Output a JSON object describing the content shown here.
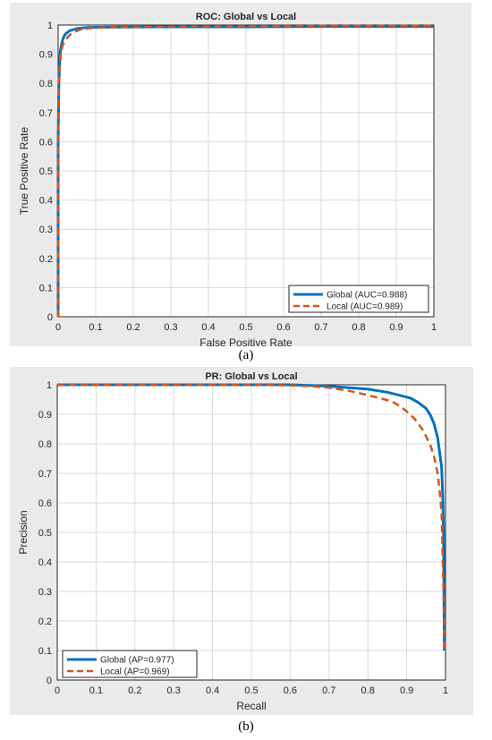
{
  "captions": [
    "(a)",
    "(b)"
  ],
  "colors": {
    "global": "#0072bd",
    "local": "#d95319",
    "grid": "#d8d8d8",
    "panel_bg": "#eaeaea"
  },
  "chart_data": [
    {
      "type": "line",
      "title": "ROC: Global vs Local",
      "xlabel": "False Positive Rate",
      "ylabel": "True Positive Rate",
      "xlim": [
        0,
        1
      ],
      "ylim": [
        0,
        1
      ],
      "xticks": [
        "0",
        "0.1",
        "0.2",
        "0.3",
        "0.4",
        "0.5",
        "0.6",
        "0.7",
        "0.8",
        "0.9",
        "1"
      ],
      "yticks": [
        "0",
        "0.1",
        "0.2",
        "0.3",
        "0.4",
        "0.5",
        "0.6",
        "0.7",
        "0.8",
        "0.9",
        "1"
      ],
      "grid": true,
      "legend_position": "bottom-right",
      "series": [
        {
          "name": "Global (AUC=0.988)",
          "style": "solid",
          "x": [
            0,
            0,
            0.002,
            0.004,
            0.006,
            0.01,
            0.015,
            0.02,
            0.03,
            0.05,
            0.08,
            0.15,
            0.3,
            0.5,
            0.7,
            1.0
          ],
          "y": [
            0,
            0.6,
            0.8,
            0.87,
            0.91,
            0.94,
            0.96,
            0.97,
            0.98,
            0.988,
            0.992,
            0.993,
            0.994,
            0.994,
            0.995,
            0.995
          ]
        },
        {
          "name": "Local (AUC=0.989)",
          "style": "dashed",
          "x": [
            0,
            0,
            0.002,
            0.004,
            0.007,
            0.012,
            0.02,
            0.03,
            0.04,
            0.06,
            0.09,
            0.15,
            0.3,
            0.5,
            0.7,
            1.0
          ],
          "y": [
            0,
            0.6,
            0.78,
            0.85,
            0.9,
            0.93,
            0.95,
            0.965,
            0.975,
            0.985,
            0.99,
            0.993,
            0.995,
            0.996,
            0.997,
            0.997
          ]
        }
      ]
    },
    {
      "type": "line",
      "title": "PR: Global vs Local",
      "xlabel": "Recall",
      "ylabel": "Precision",
      "xlim": [
        0,
        1
      ],
      "ylim": [
        0,
        1
      ],
      "xticks": [
        "0",
        "0.1",
        "0.2",
        "0.3",
        "0.4",
        "0.5",
        "0.6",
        "0.7",
        "0.8",
        "0.9",
        "1"
      ],
      "yticks": [
        "0",
        "0.1",
        "0.2",
        "0.3",
        "0.4",
        "0.5",
        "0.6",
        "0.7",
        "0.8",
        "0.9",
        "1"
      ],
      "grid": true,
      "legend_position": "bottom-left",
      "series": [
        {
          "name": "Global (AP=0.977)",
          "style": "solid",
          "x": [
            0,
            0.3,
            0.5,
            0.6,
            0.65,
            0.7,
            0.75,
            0.8,
            0.85,
            0.88,
            0.91,
            0.93,
            0.95,
            0.96,
            0.97,
            0.98,
            0.985,
            0.99,
            0.993,
            0.995,
            0.996,
            0.997
          ],
          "y": [
            1.0,
            1.0,
            1.0,
            1.0,
            0.998,
            0.995,
            0.99,
            0.985,
            0.975,
            0.965,
            0.955,
            0.94,
            0.92,
            0.9,
            0.87,
            0.82,
            0.77,
            0.72,
            0.62,
            0.5,
            0.3,
            0.1
          ]
        },
        {
          "name": "Local (AP=0.969)",
          "style": "dashed",
          "x": [
            0,
            0.3,
            0.5,
            0.6,
            0.65,
            0.7,
            0.75,
            0.8,
            0.83,
            0.86,
            0.88,
            0.9,
            0.92,
            0.94,
            0.96,
            0.97,
            0.98,
            0.985,
            0.99,
            0.995,
            0.997
          ],
          "y": [
            1.0,
            1.0,
            1.0,
            0.998,
            0.995,
            0.99,
            0.98,
            0.965,
            0.955,
            0.945,
            0.93,
            0.91,
            0.885,
            0.85,
            0.8,
            0.76,
            0.7,
            0.64,
            0.56,
            0.3,
            0.1
          ]
        }
      ]
    }
  ]
}
